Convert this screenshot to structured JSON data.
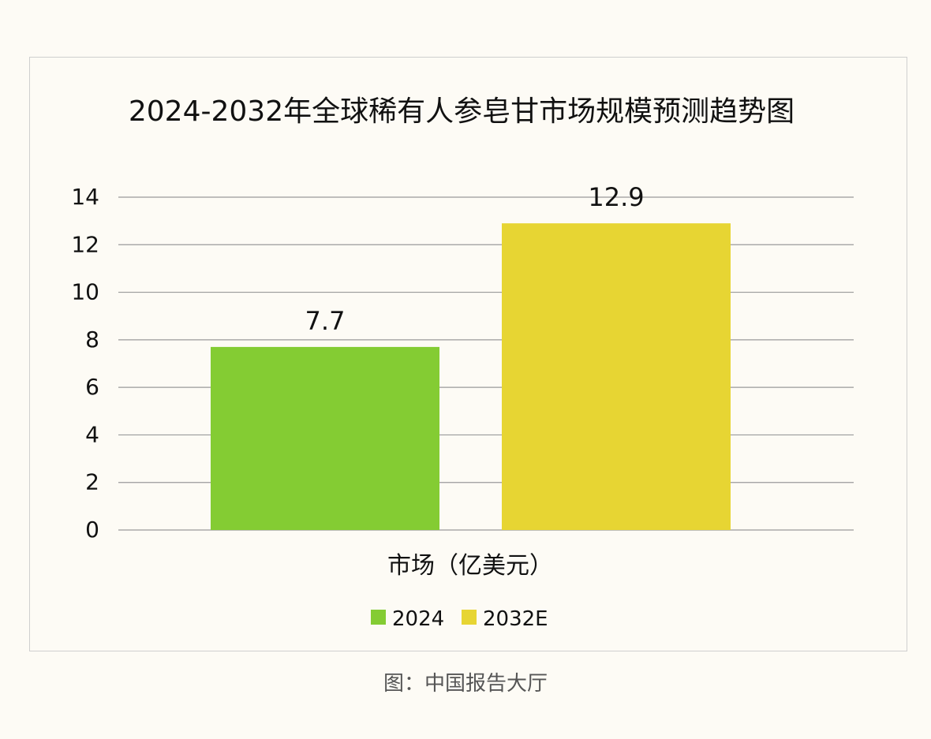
{
  "chart_data": {
    "type": "bar",
    "title": "2024-2032年全球稀有人参皂甘市场规模预测趋势图",
    "xlabel": "市场（亿美元）",
    "ylabel": "",
    "ylim": [
      0,
      14
    ],
    "yticks": [
      0,
      2,
      4,
      6,
      8,
      10,
      12,
      14
    ],
    "grid": true,
    "legend_position": "bottom",
    "series": [
      {
        "name": "2024",
        "value": 7.7,
        "label": "7.7",
        "color": "#84cc33"
      },
      {
        "name": "2032E",
        "value": 12.9,
        "label": "12.9",
        "color": "#e7d533"
      }
    ]
  },
  "caption": "图：中国报告大厅"
}
